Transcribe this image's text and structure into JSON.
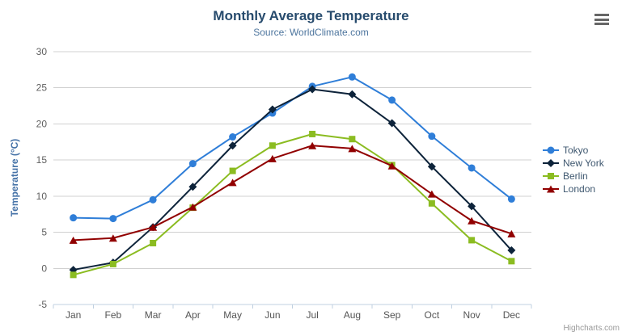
{
  "chart_data": {
    "type": "line",
    "title": "Monthly Average Temperature",
    "subtitle": "Source: WorldClimate.com",
    "xlabel": "",
    "ylabel": "Temperature (°C)",
    "categories": [
      "Jan",
      "Feb",
      "Mar",
      "Apr",
      "May",
      "Jun",
      "Jul",
      "Aug",
      "Sep",
      "Oct",
      "Nov",
      "Dec"
    ],
    "series": [
      {
        "name": "Tokyo",
        "color": "#2f7ed8",
        "marker": "circle",
        "values": [
          7.0,
          6.9,
          9.5,
          14.5,
          18.2,
          21.5,
          25.2,
          26.5,
          23.3,
          18.3,
          13.9,
          9.6
        ]
      },
      {
        "name": "New York",
        "color": "#0d233a",
        "marker": "diamond",
        "values": [
          -0.2,
          0.8,
          5.7,
          11.3,
          17.0,
          22.0,
          24.8,
          24.1,
          20.1,
          14.1,
          8.6,
          2.5
        ]
      },
      {
        "name": "Berlin",
        "color": "#8bbc21",
        "marker": "square",
        "values": [
          -0.9,
          0.6,
          3.5,
          8.4,
          13.5,
          17.0,
          18.6,
          17.9,
          14.3,
          9.0,
          3.9,
          1.0
        ]
      },
      {
        "name": "London",
        "color": "#910000",
        "marker": "triangle",
        "values": [
          3.9,
          4.2,
          5.7,
          8.5,
          11.9,
          15.2,
          17.0,
          16.6,
          14.2,
          10.3,
          6.6,
          4.8
        ]
      }
    ],
    "ylim": [
      -5,
      30
    ],
    "ytick_interval": 5,
    "yticks": [
      -5,
      0,
      5,
      10,
      15,
      20,
      25,
      30
    ],
    "grid": true,
    "legend_position": "right"
  },
  "styles": {
    "grid_color": "#d0d0d0",
    "axis_line_color": "#c0d0e0",
    "tick_color": "#c0d0e0",
    "axis_label_color": "#606060"
  },
  "credits": {
    "label": "Highcharts.com"
  },
  "icons": {
    "menu": "hamburger-icon"
  }
}
